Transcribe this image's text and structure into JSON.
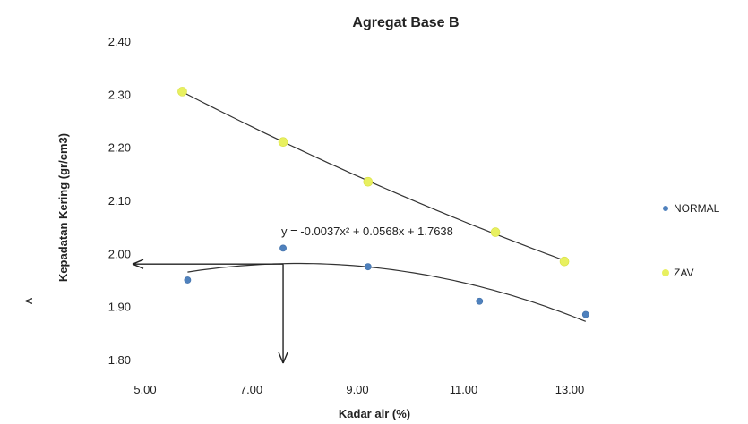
{
  "chart_data": {
    "type": "scatter",
    "title": "Agregat Base B",
    "xlabel": "Kadar air  (%)",
    "ylabel": "Kepadatan Kering (gr/cm3)",
    "xlim": [
      5.0,
      13.0
    ],
    "ylim": [
      1.8,
      2.4
    ],
    "x_ticks": [
      "5.00",
      "7.00",
      "9.00",
      "11.00",
      "13.00"
    ],
    "y_ticks": [
      "1.80",
      "1.90",
      "2.00",
      "2.10",
      "2.20",
      "2.30",
      "2.40"
    ],
    "legend_position": "right",
    "series": [
      {
        "name": "NORMAL",
        "color": "#4f81bd",
        "x": [
          5.8,
          7.6,
          9.2,
          11.3,
          13.3
        ],
        "y": [
          1.95,
          2.01,
          1.975,
          1.91,
          1.885
        ]
      },
      {
        "name": "ZAV",
        "color": "#e8f060",
        "x": [
          5.7,
          7.6,
          9.2,
          11.6,
          12.9
        ],
        "y": [
          2.305,
          2.21,
          2.135,
          2.04,
          1.985
        ]
      }
    ],
    "trendline_equation": "y = -0.0037x² + 0.0568x + 1.7638",
    "annotations": {
      "x_arrow_at": 7.6,
      "y_arrow_at": 1.98,
      "stray_mark": "ʌ"
    }
  }
}
